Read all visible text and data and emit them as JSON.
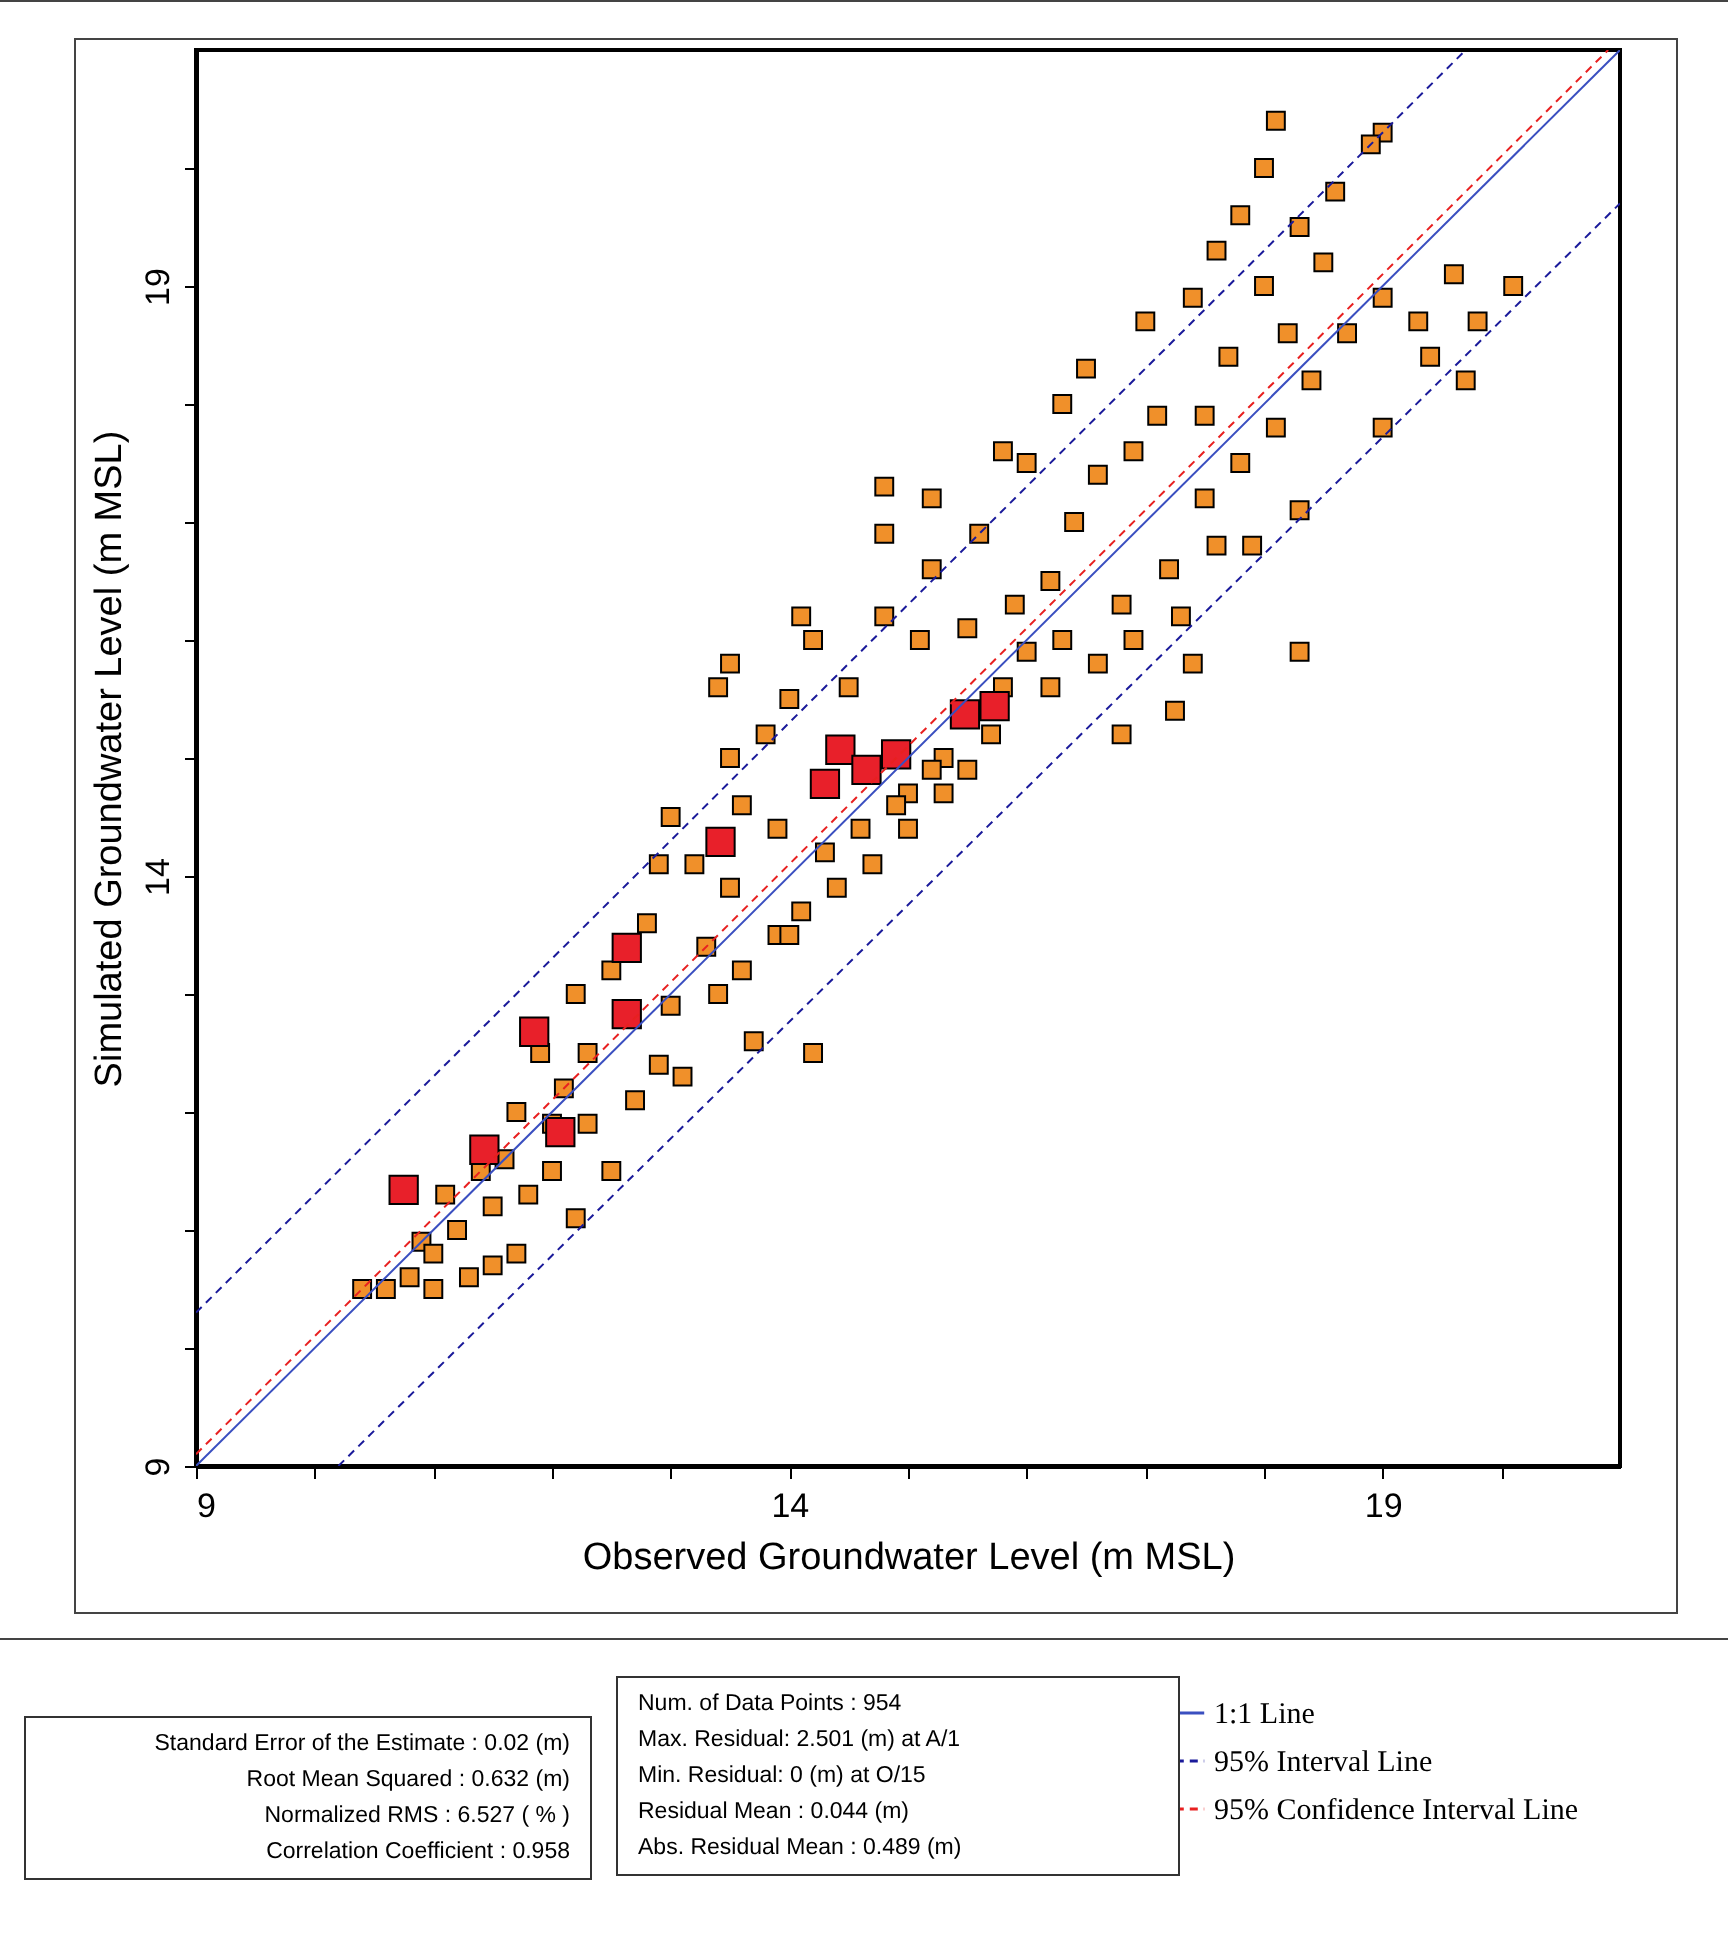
{
  "chart_data": {
    "type": "scatter",
    "xlabel": "Observed Groundwater Level (m MSL)",
    "ylabel": "Simulated Groundwater Level (m MSL)",
    "xlim": [
      9,
      21
    ],
    "ylim": [
      9,
      21
    ],
    "xticks": [
      9,
      {
        "value": 10,
        "label": null
      },
      {
        "value": 11,
        "label": null
      },
      {
        "value": 12,
        "label": null
      },
      {
        "value": 13,
        "label": null
      },
      14,
      {
        "value": 15,
        "label": null
      },
      {
        "value": 16,
        "label": null
      },
      {
        "value": 17,
        "label": null
      },
      {
        "value": 18,
        "label": null
      },
      19,
      {
        "value": 20,
        "label": null
      }
    ],
    "yticks": [
      9,
      {
        "value": 10,
        "label": null
      },
      {
        "value": 11,
        "label": null
      },
      {
        "value": 12,
        "label": null
      },
      {
        "value": 13,
        "label": null
      },
      14,
      {
        "value": 15,
        "label": null
      },
      {
        "value": 16,
        "label": null
      },
      {
        "value": 17,
        "label": null
      },
      {
        "value": 18,
        "label": null
      },
      19,
      {
        "value": 20,
        "label": null
      }
    ],
    "grid": false,
    "legend": "bottom right",
    "series": [
      {
        "marker": "square",
        "color": "#f0902a",
        "x": [
          10.4,
          10.6,
          10.8,
          11.0,
          11.3,
          11.5,
          11.7,
          10.9,
          11.2,
          11.5,
          11.8,
          12.0,
          11.4,
          11.1,
          12.2,
          12.5,
          12.3,
          12.7,
          12.1,
          11.7,
          11.9,
          12.3,
          12.9,
          13.0,
          12.5,
          12.2,
          12.8,
          13.3,
          13.6,
          13.1,
          13.9,
          14.1,
          14.4,
          14.7,
          15.0,
          15.3,
          15.5,
          15.7,
          13.5,
          13.9,
          13.2,
          13.6,
          13.8,
          14.0,
          14.2,
          13.5,
          12.9,
          13.0,
          14.5,
          14.8,
          15.2,
          15.6,
          15.1,
          15.5,
          15.9,
          16.2,
          16.4,
          16.6,
          16.9,
          17.1,
          17.0,
          16.5,
          17.4,
          17.6,
          17.8,
          18.0,
          18.1,
          18.0,
          18.3,
          18.5,
          18.7,
          19.0,
          19.3,
          19.6,
          19.0,
          18.9,
          20.1,
          19.8,
          19.4,
          19.0,
          19.7,
          18.3,
          18.3,
          17.25,
          16.8,
          17.4,
          14.8,
          14.8,
          13.5,
          13.4,
          14.1,
          15.2,
          13.7,
          14.2,
          15.0,
          15.3,
          15.8,
          16.0,
          16.3,
          16.8,
          17.2,
          17.5,
          17.8,
          18.1,
          18.4,
          17.9,
          17.3,
          16.6,
          16.2,
          16.0,
          16.3,
          15.8,
          17.7,
          18.2,
          18.6,
          17.5,
          14.3,
          14.6,
          14.9,
          15.2,
          12.0,
          11.6,
          11.0,
          13.4,
          14.0,
          16.9,
          17.6
        ],
        "values": [
          10.5,
          10.5,
          10.6,
          10.5,
          10.6,
          10.7,
          10.8,
          10.9,
          11.0,
          11.2,
          11.3,
          11.5,
          11.5,
          11.3,
          11.1,
          11.5,
          11.9,
          12.1,
          12.2,
          12.0,
          12.5,
          12.5,
          12.4,
          12.9,
          13.2,
          13.0,
          13.6,
          13.4,
          13.2,
          12.3,
          13.5,
          13.7,
          13.9,
          14.1,
          14.4,
          14.7,
          14.9,
          15.2,
          13.9,
          14.4,
          14.1,
          14.6,
          15.2,
          15.5,
          16.0,
          15.0,
          14.1,
          14.5,
          15.6,
          16.2,
          16.6,
          16.9,
          16.0,
          16.1,
          16.3,
          16.5,
          17.0,
          17.4,
          17.6,
          17.9,
          18.7,
          18.3,
          18.9,
          19.3,
          19.6,
          20.0,
          20.4,
          19.0,
          19.5,
          19.2,
          18.6,
          18.9,
          18.7,
          19.1,
          20.3,
          20.2,
          19.0,
          18.7,
          18.4,
          17.8,
          18.2,
          17.1,
          15.9,
          15.4,
          15.2,
          15.8,
          17.3,
          16.9,
          15.8,
          15.6,
          16.2,
          17.2,
          12.6,
          12.5,
          14.7,
          15.0,
          15.6,
          15.9,
          16.0,
          16.3,
          16.6,
          17.2,
          17.5,
          17.8,
          18.2,
          16.8,
          16.2,
          15.8,
          15.6,
          17.5,
          18.0,
          17.6,
          18.4,
          18.6,
          19.8,
          17.9,
          14.2,
          14.4,
          14.6,
          14.9,
          11.9,
          11.6,
          10.8,
          13.0,
          13.5,
          16.0,
          16.8
        ]
      },
      {
        "marker": "square",
        "color": "#e8202a",
        "x": [
          10.75,
          11.43,
          12.07,
          11.85,
          12.63,
          12.63,
          13.42,
          14.3,
          14.43,
          14.65,
          14.9,
          15.48,
          15.73
        ],
        "values": [
          11.34,
          11.68,
          11.83,
          12.68,
          12.83,
          13.39,
          14.29,
          14.78,
          15.07,
          14.9,
          15.03,
          15.37,
          15.44
        ]
      },
      {
        "type": "line",
        "name": "1:1 Line",
        "color": "#3a4fc0",
        "line_style": "solid",
        "x": [
          9,
          21
        ],
        "values": [
          9,
          21
        ]
      },
      {
        "type": "line",
        "name": "95% Interval Line",
        "color": "#1a1a9a",
        "line_style": "dashed",
        "x": [
          9,
          19.7
        ],
        "values": [
          10.3,
          21
        ]
      },
      {
        "type": "line",
        "color": "#1a1a9a",
        "line_style": "dashed",
        "x": [
          10.2,
          21
        ],
        "values": [
          9,
          19.7
        ]
      },
      {
        "type": "line",
        "name": "95% Confidence Interval Line",
        "color": "#e82020",
        "line_style": "dashed",
        "x": [
          9,
          20.9
        ],
        "values": [
          9.1,
          21
        ]
      }
    ],
    "annotations": [
      "Standard Error of the Estimate : 0.02 (m)\nRoot Mean Squared : 0.632 (m)\nNormalized RMS : 6.527 ( % )\nCorrelation Coefficient : 0.958",
      "Num. of Data Points : 954\nMax. Residual: 2.501 (m) at A/1\nMin. Residual: 0 (m) at O/15\nResidual Mean : 0.044 (m)\nAbs. Residual Mean : 0.489 (m)"
    ]
  }
}
